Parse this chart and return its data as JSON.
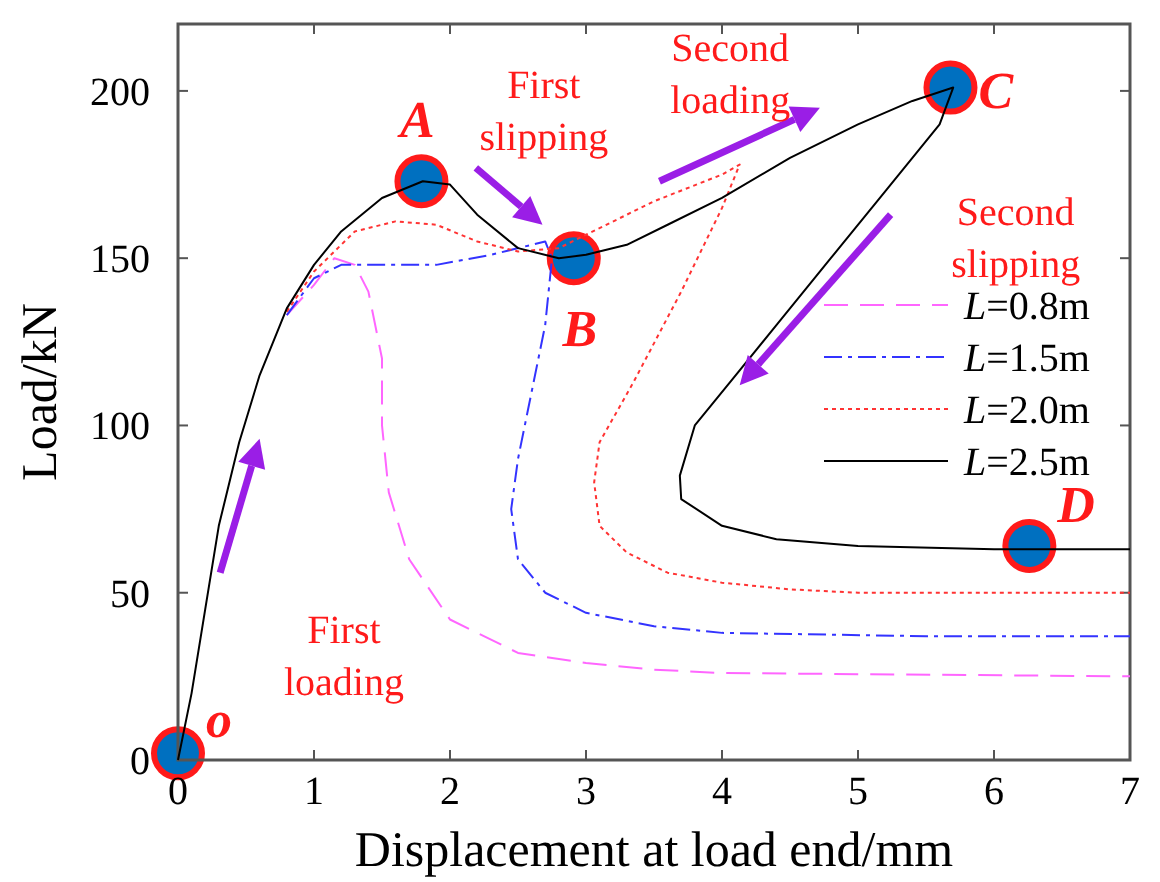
{
  "chart_data": {
    "type": "line",
    "xlabel": "Displacement at load end/mm",
    "ylabel": "Load/kN",
    "xlim": [
      0,
      7
    ],
    "ylim": [
      0,
      220
    ],
    "xticks": [
      0,
      1,
      2,
      3,
      4,
      5,
      6,
      7
    ],
    "yticks": [
      0,
      50,
      100,
      150,
      200
    ],
    "grid": false,
    "legend": "right",
    "marker": "none",
    "series": [
      {
        "name": "L=0.8m",
        "color": "#ff66ff",
        "line_style": "dashed",
        "x": [
          0.8,
          1.0,
          1.15,
          1.3,
          1.4,
          1.5,
          1.5,
          1.55,
          1.7,
          2.0,
          2.5,
          3.0,
          3.5,
          4.0,
          7.0
        ],
        "values": [
          133,
          142,
          150,
          148,
          140,
          120,
          100,
          80,
          60,
          42,
          32,
          29,
          27,
          26,
          25
        ]
      },
      {
        "name": "L=1.5m",
        "color": "#3333ff",
        "line_style": "dashdot",
        "x": [
          0.8,
          1.0,
          1.2,
          1.5,
          1.9,
          2.3,
          2.6,
          2.7,
          2.75,
          2.7,
          2.6,
          2.5,
          2.45,
          2.5,
          2.7,
          3.0,
          3.5,
          4.0,
          5.5,
          7.0
        ],
        "values": [
          133,
          144,
          148,
          148,
          148,
          151,
          154,
          155,
          150,
          130,
          110,
          90,
          75,
          60,
          50,
          44,
          40,
          38,
          37,
          37
        ]
      },
      {
        "name": "L=2.0m",
        "color": "#ff3333",
        "line_style": "dotted",
        "x": [
          0.8,
          1.0,
          1.3,
          1.6,
          1.9,
          2.2,
          2.5,
          2.8,
          3.0,
          3.5,
          4.0,
          4.13,
          4.0,
          3.7,
          3.35,
          3.1,
          3.06,
          3.1,
          3.3,
          3.6,
          4.0,
          4.5,
          5.0,
          7.0
        ],
        "values": [
          134,
          146,
          158,
          161,
          160,
          155,
          152,
          153,
          157,
          167,
          175,
          178,
          165,
          140,
          113,
          95,
          83,
          70,
          62,
          56,
          53,
          51,
          50,
          50
        ]
      },
      {
        "name": "L=2.5m",
        "color": "#000000",
        "line_style": "solid",
        "x": [
          0,
          0.1,
          0.2,
          0.3,
          0.45,
          0.6,
          0.8,
          1.0,
          1.2,
          1.5,
          1.8,
          2.0,
          2.2,
          2.5,
          2.8,
          3.0,
          3.3,
          3.6,
          4.0,
          4.5,
          5.0,
          5.4,
          5.7,
          5.6,
          5.2,
          4.8,
          4.4,
          4.1,
          3.8,
          3.69,
          3.7,
          4.0,
          4.4,
          5.0,
          6.0,
          7.0
        ],
        "values": [
          0,
          20,
          45,
          70,
          95,
          115,
          135,
          148,
          158,
          168,
          173,
          172,
          163,
          153,
          150,
          151,
          154,
          160,
          168,
          180,
          190,
          197,
          201,
          190,
          170,
          150,
          130,
          115,
          100,
          85,
          78,
          70,
          66,
          64,
          63,
          63
        ]
      }
    ],
    "annotations": [
      {
        "text": "o",
        "x": 0,
        "y": 2
      },
      {
        "text": "A",
        "x": 1.79,
        "y": 173
      },
      {
        "text": "B",
        "x": 2.91,
        "y": 150
      },
      {
        "text": "C",
        "x": 5.68,
        "y": 201
      },
      {
        "text": "D",
        "x": 6.26,
        "y": 64
      },
      "First loading",
      "First slipping",
      "Second loading",
      "Second slipping"
    ]
  }
}
